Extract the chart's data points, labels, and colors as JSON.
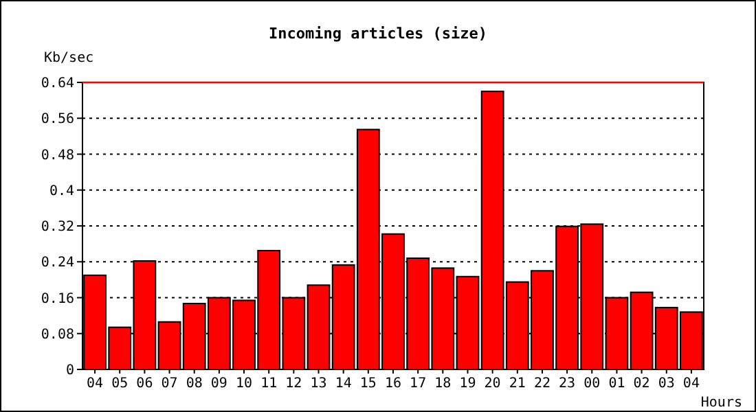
{
  "chart_data": {
    "type": "bar",
    "title": "Incoming articles (size)",
    "ylabel": "Kb/sec",
    "xlabel": "Hours",
    "categories": [
      "04",
      "05",
      "06",
      "07",
      "08",
      "09",
      "10",
      "11",
      "12",
      "13",
      "14",
      "15",
      "16",
      "17",
      "18",
      "19",
      "20",
      "21",
      "22",
      "23",
      "00",
      "01",
      "02",
      "03",
      "04"
    ],
    "values": [
      0.21,
      0.094,
      0.242,
      0.106,
      0.147,
      0.16,
      0.154,
      0.265,
      0.16,
      0.188,
      0.233,
      0.535,
      0.302,
      0.248,
      0.226,
      0.207,
      0.62,
      0.195,
      0.22,
      0.319,
      0.324,
      0.16,
      0.172,
      0.138,
      0.128
    ],
    "color": "#ff0000",
    "ylim": [
      0,
      0.64
    ],
    "yticks": [
      0,
      0.08,
      0.16,
      0.24,
      0.32,
      0.4,
      0.48,
      0.56,
      0.64
    ],
    "grid": "y",
    "ref_lines": [
      {
        "axis": "y",
        "value": 0.64,
        "color": "#ff0000"
      }
    ]
  }
}
